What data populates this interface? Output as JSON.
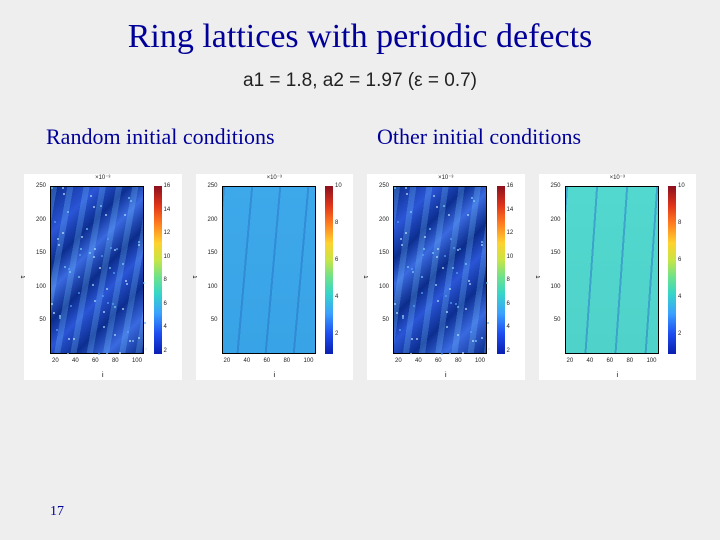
{
  "title": "Ring lattices with periodic defects",
  "subtitle": "a1 = 1.8, a2 = 1.97  (ε = 0.7)",
  "cond_left": "Random initial conditions",
  "cond_right": "Other initial conditions",
  "pagenum": "17",
  "axes": {
    "x_ticks": [
      "20",
      "40",
      "60",
      "80",
      "100"
    ],
    "y_ticks": [
      {
        "label": "250",
        "pct": 0
      },
      {
        "label": "200",
        "pct": 20
      },
      {
        "label": "150",
        "pct": 40
      },
      {
        "label": "100",
        "pct": 60
      },
      {
        "label": "50",
        "pct": 80
      }
    ],
    "x_label": "i",
    "y_label": "τ"
  },
  "panels": [
    {
      "title": "×10⁻³",
      "plot_bg": "linear-gradient(135deg,#0b2c8a 0%,#2a55d6 18%,#0c2e90 30%,#3a6ae0 40%,#0b2c8a 52%,#2a55d6 62%,#0c2e90 74%,#3a6ae0 86%,#0b2c8a 100%)",
      "overlay": "repeating-linear-gradient(100deg, rgba(120,200,255,0.25) 0 6px, rgba(10,30,120,0) 6px 16px)",
      "speckle": true,
      "cbar": "linear-gradient(to bottom,#8b0f1f 0%,#e2361a 12%,#ff7a1f 22%,#ffd22e 34%,#c8e545 44%,#6fe28a 54%,#36d6c8 64%,#3aa0ff 76%,#1d4df0 88%,#0a1fb0 100%)",
      "cticks": [
        {
          "label": "16",
          "pct": 0
        },
        {
          "label": "14",
          "pct": 14
        },
        {
          "label": "12",
          "pct": 28
        },
        {
          "label": "10",
          "pct": 42
        },
        {
          "label": "8",
          "pct": 56
        },
        {
          "label": "6",
          "pct": 70
        },
        {
          "label": "4",
          "pct": 84
        },
        {
          "label": "2",
          "pct": 98
        }
      ]
    },
    {
      "title": "×10⁻³",
      "plot_bg": "linear-gradient(0deg,#38a3e6 0%,#3da8ea 100%)",
      "overlay": "repeating-linear-gradient(95deg, rgba(20,60,160,0.25) 0 2px, rgba(60,170,235,0) 2px 28px)",
      "speckle": false,
      "cbar": "linear-gradient(to bottom,#8b0f1f 0%,#e2361a 12%,#ff7a1f 22%,#ffd22e 34%,#c8e545 44%,#6fe28a 54%,#36d6c8 64%,#3aa0ff 76%,#1d4df0 88%,#0a1fb0 100%)",
      "cticks": [
        {
          "label": "10",
          "pct": 0
        },
        {
          "label": "8",
          "pct": 22
        },
        {
          "label": "6",
          "pct": 44
        },
        {
          "label": "4",
          "pct": 66
        },
        {
          "label": "2",
          "pct": 88
        }
      ]
    },
    {
      "title": "×10⁻³",
      "plot_bg": "linear-gradient(135deg,#0b2c8a 0%,#2a55d6 16%,#0c2e90 28%,#3a6ae0 38%,#0b2c8a 50%,#2a55d6 60%,#0c2e90 72%,#3a6ae0 84%,#0b2c8a 100%)",
      "overlay": "repeating-linear-gradient(98deg, rgba(120,200,255,0.25) 0 6px, rgba(10,30,120,0) 6px 16px)",
      "speckle": true,
      "cbar": "linear-gradient(to bottom,#8b0f1f 0%,#e2361a 12%,#ff7a1f 22%,#ffd22e 34%,#c8e545 44%,#6fe28a 54%,#36d6c8 64%,#3aa0ff 76%,#1d4df0 88%,#0a1fb0 100%)",
      "cticks": [
        {
          "label": "16",
          "pct": 0
        },
        {
          "label": "14",
          "pct": 14
        },
        {
          "label": "12",
          "pct": 28
        },
        {
          "label": "10",
          "pct": 42
        },
        {
          "label": "8",
          "pct": 56
        },
        {
          "label": "6",
          "pct": 70
        },
        {
          "label": "4",
          "pct": 84
        },
        {
          "label": "2",
          "pct": 98
        }
      ]
    },
    {
      "title": "×10⁻³",
      "plot_bg": "linear-gradient(0deg,#4fd2c9 0%,#52d8cf 100%)",
      "overlay": "repeating-linear-gradient(94deg, rgba(30,90,200,0.4) 0 2px, rgba(80,210,205,0) 2px 30px)",
      "speckle": false,
      "cbar": "linear-gradient(to bottom,#8b0f1f 0%,#e2361a 12%,#ff7a1f 22%,#ffd22e 34%,#c8e545 44%,#6fe28a 54%,#36d6c8 64%,#3aa0ff 76%,#1d4df0 88%,#0a1fb0 100%)",
      "cticks": [
        {
          "label": "10",
          "pct": 0
        },
        {
          "label": "8",
          "pct": 22
        },
        {
          "label": "6",
          "pct": 44
        },
        {
          "label": "4",
          "pct": 66
        },
        {
          "label": "2",
          "pct": 88
        }
      ]
    }
  ]
}
